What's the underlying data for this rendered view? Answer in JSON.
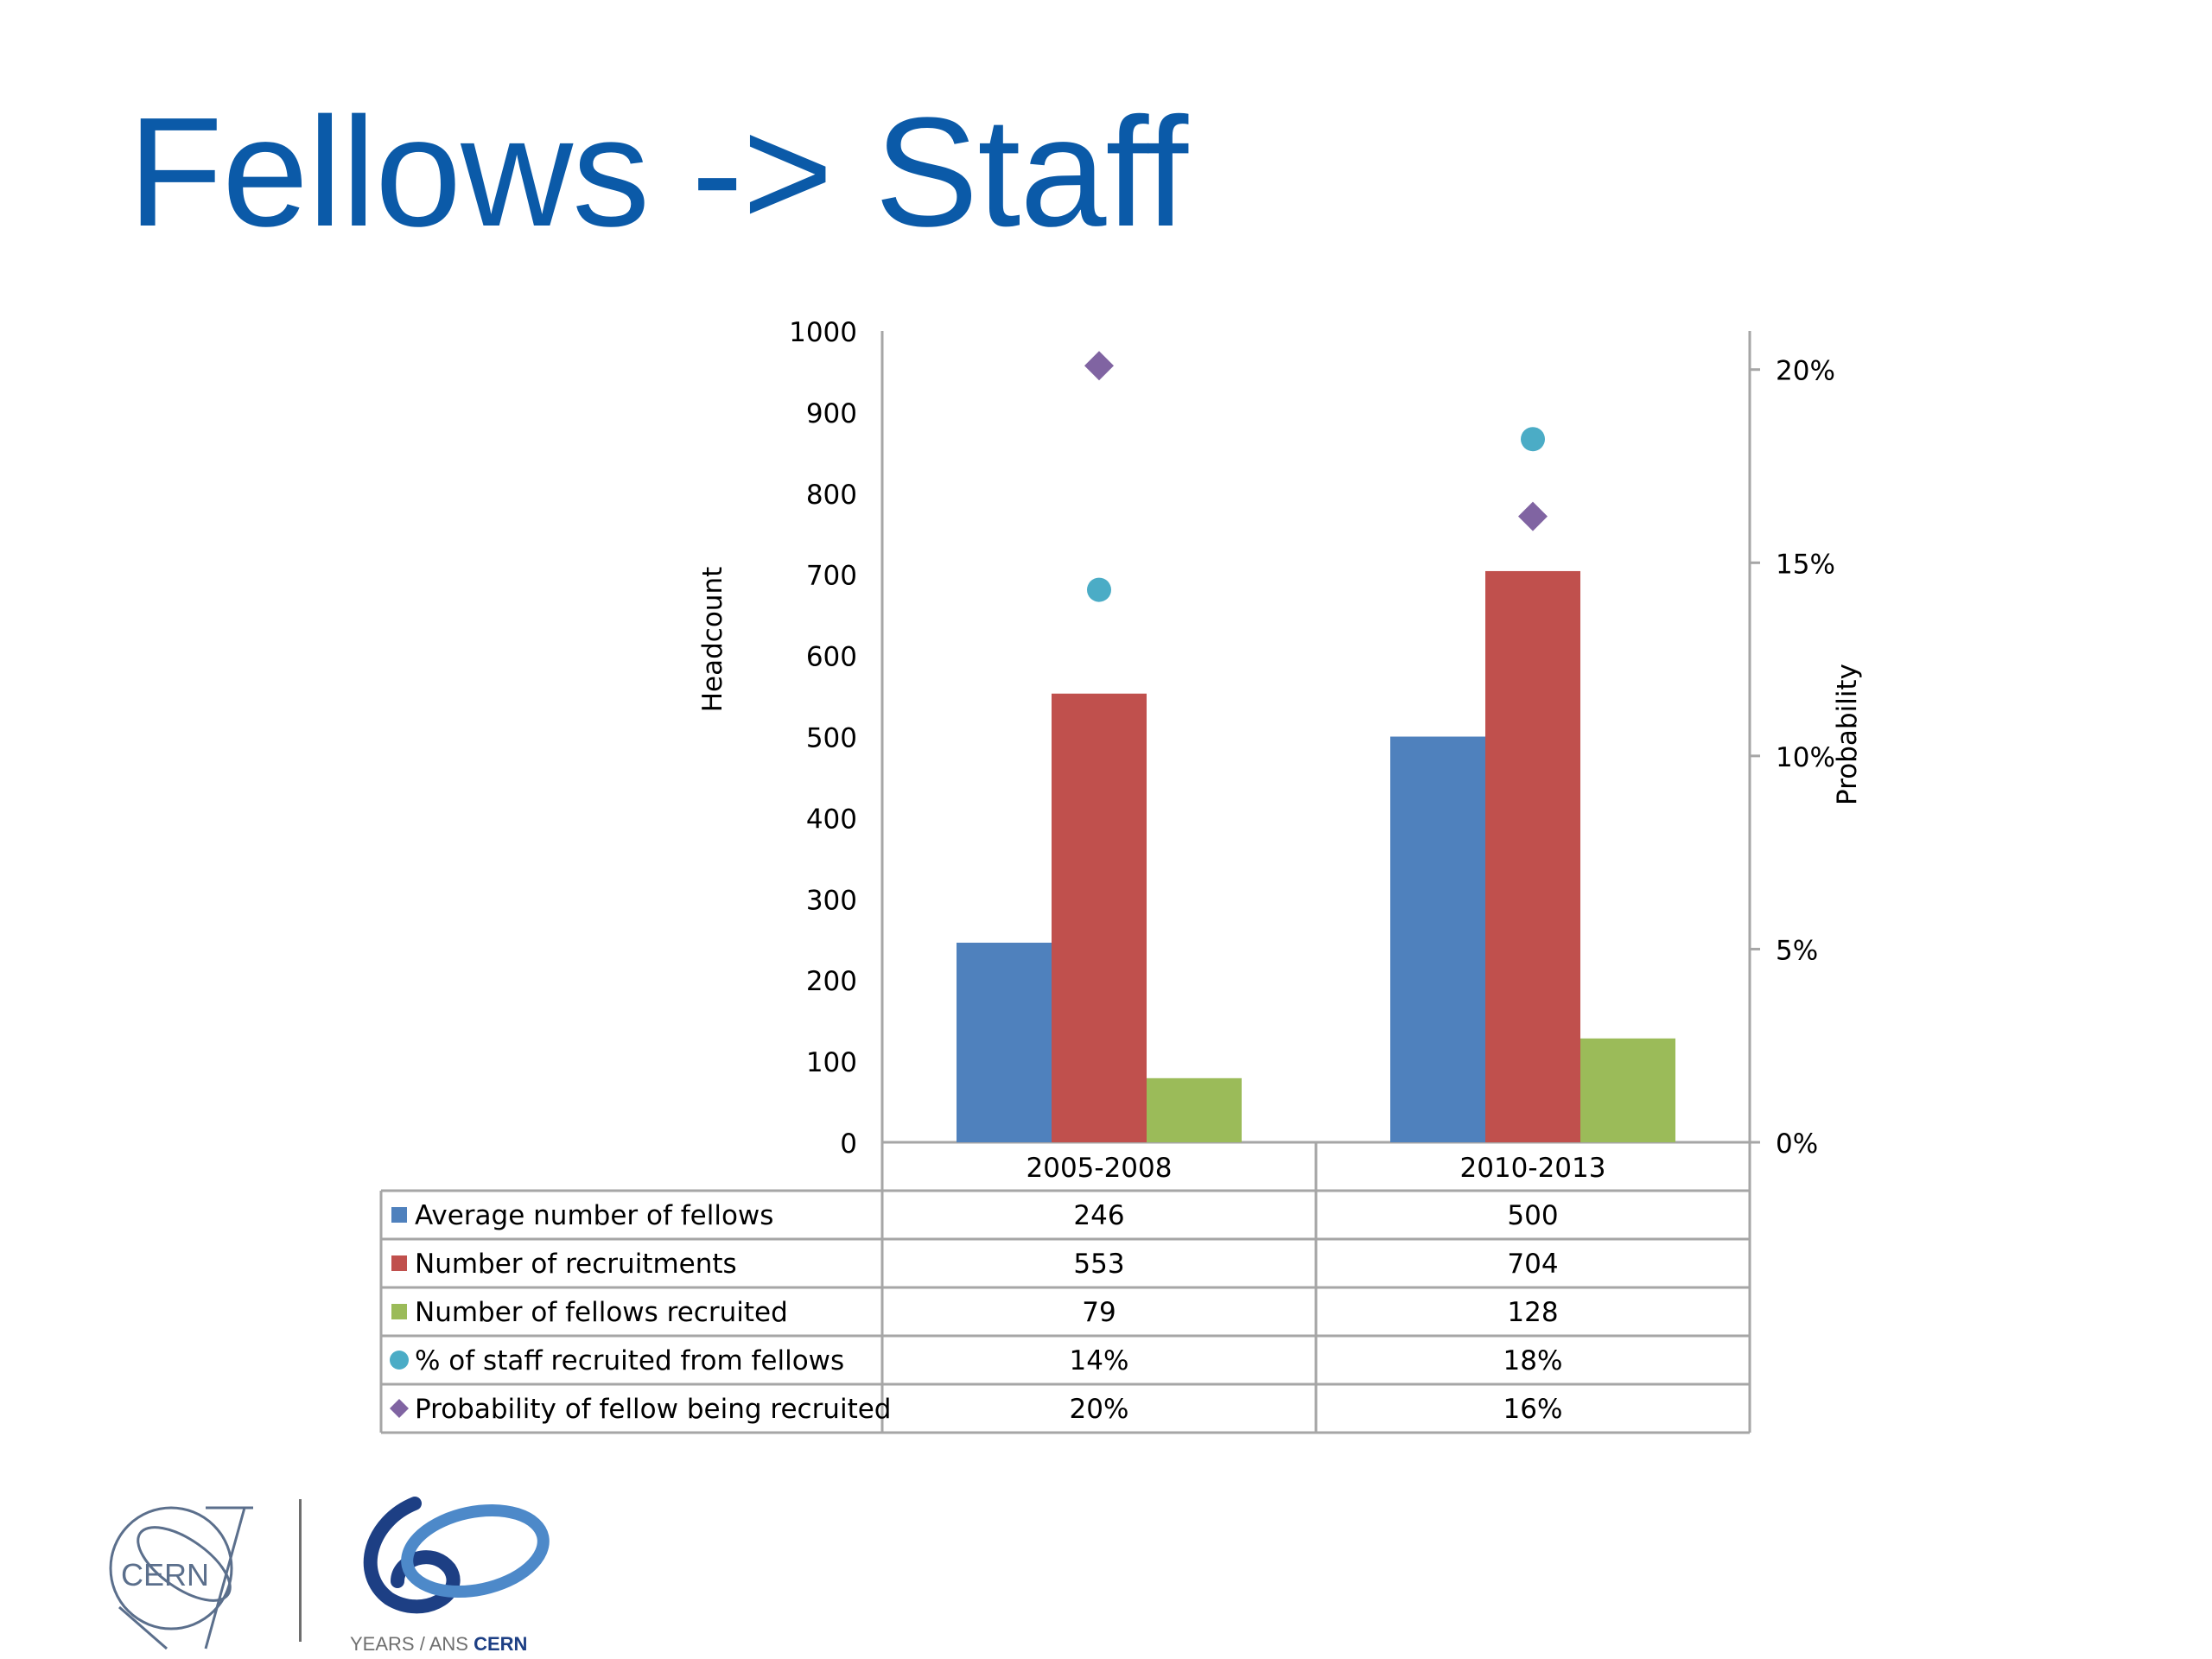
{
  "slide": {
    "title": "Fellows -> Staff"
  },
  "colors": {
    "title": "#0b5aa8",
    "avg_fellows": "#4f81bd",
    "recruitments": "#c0504d",
    "fellows_recruited": "#9bbb59",
    "pct_staff": "#4bacc6",
    "probability": "#8064a2",
    "axis": "#a6a6a6",
    "text": "#000000"
  },
  "chart_data": {
    "type": "bar",
    "categories": [
      "2005-2008",
      "2010-2013"
    ],
    "ylabel": "Headcount",
    "y2label": "Probability",
    "ylim": [
      0,
      1000
    ],
    "y_ticks": [
      "0",
      "100",
      "200",
      "300",
      "400",
      "500",
      "600",
      "700",
      "800",
      "900",
      "1000"
    ],
    "y2lim": [
      0,
      21
    ],
    "y2_ticks": [
      "0%",
      "5%",
      "10%",
      "15%",
      "20%"
    ],
    "grid": false,
    "legend": "data-table",
    "series": [
      {
        "name": "Average number of fellows",
        "kind": "bar",
        "axis": "left",
        "values": [
          246,
          500
        ],
        "labels": [
          "246",
          "500"
        ],
        "color": "#4f81bd",
        "marker": "square"
      },
      {
        "name": "Number of recruitments",
        "kind": "bar",
        "axis": "left",
        "values": [
          553,
          704
        ],
        "labels": [
          "553",
          "704"
        ],
        "color": "#c0504d",
        "marker": "square"
      },
      {
        "name": "Number of fellows recruited",
        "kind": "bar",
        "axis": "left",
        "values": [
          79,
          128
        ],
        "labels": [
          "79",
          "128"
        ],
        "color": "#9bbb59",
        "marker": "square"
      },
      {
        "name": "% of staff recruited from fellows",
        "kind": "point",
        "axis": "right",
        "values": [
          14.3,
          18.2
        ],
        "labels": [
          "14%",
          "18%"
        ],
        "color": "#4bacc6",
        "marker": "circle"
      },
      {
        "name": "Probability of fellow being recruited",
        "kind": "point",
        "axis": "right",
        "values": [
          20.1,
          16.2
        ],
        "labels": [
          "20%",
          "16%"
        ],
        "color": "#8064a2",
        "marker": "diamond"
      }
    ]
  },
  "logo": {
    "cern_text": "CERN",
    "anniversary_caption_prefix": "YEARS / ANS ",
    "anniversary_caption_bold": "CERN"
  }
}
